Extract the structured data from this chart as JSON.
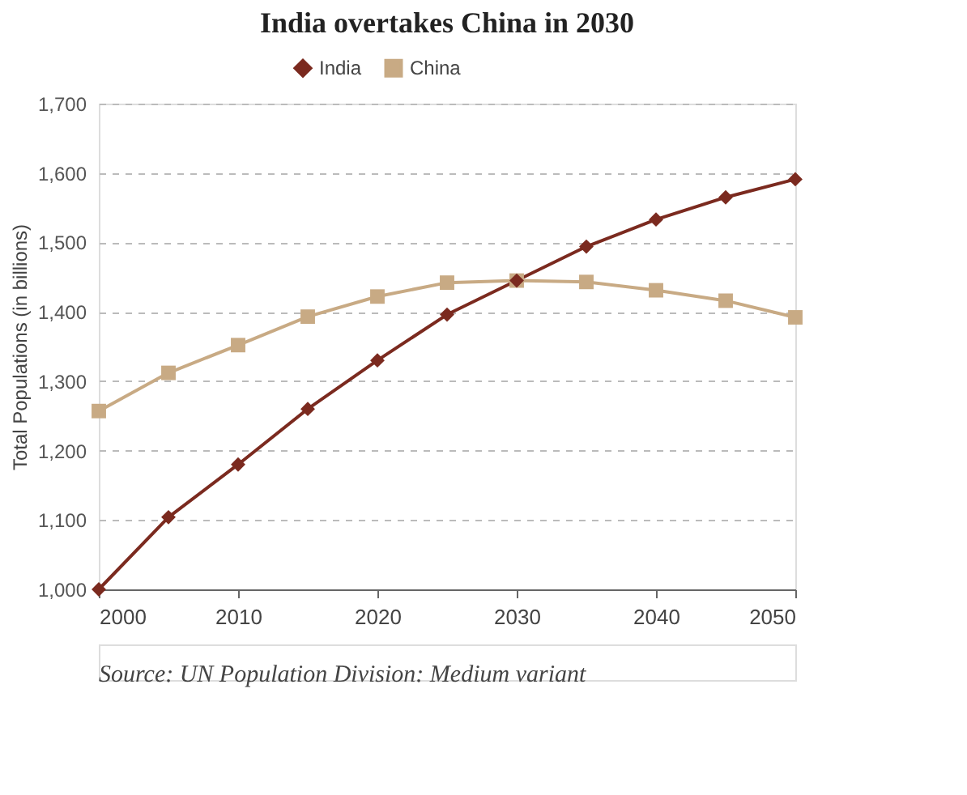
{
  "chart_data": {
    "type": "line",
    "title": "India overtakes China in 2030",
    "ylabel": "Total Populations (in billions)",
    "x": [
      2000,
      2005,
      2010,
      2015,
      2020,
      2025,
      2030,
      2035,
      2040,
      2045,
      2050
    ],
    "series": [
      {
        "name": "India",
        "color": "#7b2a1f",
        "marker": "diamond",
        "values": [
          1000,
          1104,
          1180,
          1260,
          1330,
          1396,
          1445,
          1494,
          1533,
          1565,
          1591
        ]
      },
      {
        "name": "China",
        "color": "#c8aa84",
        "marker": "square",
        "values": [
          1257,
          1312,
          1352,
          1393,
          1422,
          1442,
          1445,
          1443,
          1431,
          1416,
          1392
        ]
      }
    ],
    "xlim": [
      2000,
      2050
    ],
    "xticks": [
      2000,
      2010,
      2020,
      2030,
      2040,
      2050
    ],
    "ylim": [
      1000,
      1700
    ],
    "yticks": [
      {
        "value": 1000,
        "label": "1,000"
      },
      {
        "value": 1100,
        "label": "1,100"
      },
      {
        "value": 1200,
        "label": "1,200"
      },
      {
        "value": 1300,
        "label": "1,300"
      },
      {
        "value": 1400,
        "label": "1,400"
      },
      {
        "value": 1500,
        "label": "1,500"
      },
      {
        "value": 1600,
        "label": "1,600"
      },
      {
        "value": 1700,
        "label": "1,700"
      }
    ],
    "grid": "y",
    "legend": "top",
    "line_style": "solid",
    "annotations": [
      "Source: UN Population Division: Medium variant"
    ]
  }
}
